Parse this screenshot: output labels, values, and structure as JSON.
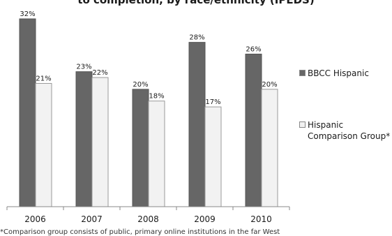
{
  "chart_data": {
    "type": "bar",
    "title": "to completion, by race/ethnicity (IPEDS)",
    "categories": [
      "2006",
      "2007",
      "2008",
      "2009",
      "2010"
    ],
    "series": [
      {
        "name": "BBCC Hispanic",
        "values": [
          32,
          23,
          20,
          28,
          26
        ],
        "color": "#666666"
      },
      {
        "name": "Hispanic Comparison Group*",
        "values": [
          21,
          22,
          18,
          17,
          20
        ],
        "color": "#f2f2f2"
      }
    ],
    "data_labels": {
      "BBCC Hispanic": [
        "32%",
        "23%",
        "20%",
        "28%",
        "26%"
      ],
      "Hispanic Comparison Group*": [
        "21%",
        "22%",
        "18%",
        "17%",
        "20%"
      ]
    },
    "ylim": [
      0,
      32
    ],
    "grid": false,
    "legend_position": "right",
    "footnote": "*Comparison group consists of public, primary online institutions in the far West"
  }
}
